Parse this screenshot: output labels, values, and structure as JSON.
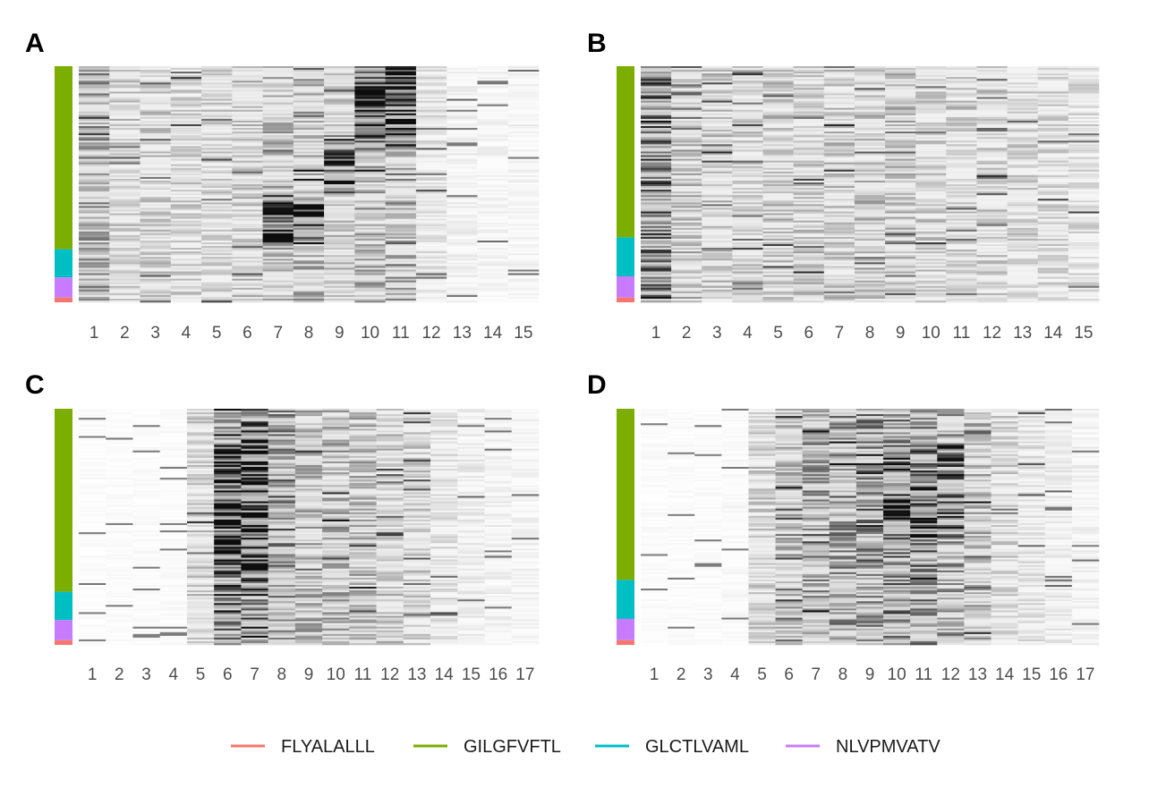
{
  "chart_data": [
    {
      "panel": "A",
      "type": "heatmap",
      "columns": [
        "1",
        "2",
        "3",
        "4",
        "5",
        "6",
        "7",
        "8",
        "9",
        "10",
        "11",
        "12",
        "13",
        "14",
        "15"
      ],
      "row_groups": [
        {
          "name": "GILGFVFTL",
          "fraction": 0.775
        },
        {
          "name": "GLCTLVAML",
          "fraction": 0.12
        },
        {
          "name": "NLVPMVATV",
          "fraction": 0.085
        },
        {
          "name": "FLYALALLL",
          "fraction": 0.02
        }
      ],
      "grid": false
    },
    {
      "panel": "B",
      "type": "heatmap",
      "columns": [
        "1",
        "2",
        "3",
        "4",
        "5",
        "6",
        "7",
        "8",
        "9",
        "10",
        "11",
        "12",
        "13",
        "14",
        "15"
      ],
      "row_groups": [
        {
          "name": "GILGFVFTL",
          "fraction": 0.725
        },
        {
          "name": "GLCTLVAML",
          "fraction": 0.165
        },
        {
          "name": "NLVPMVATV",
          "fraction": 0.09
        },
        {
          "name": "FLYALALLL",
          "fraction": 0.02
        }
      ],
      "grid": false
    },
    {
      "panel": "C",
      "type": "heatmap",
      "columns": [
        "1",
        "2",
        "3",
        "4",
        "5",
        "6",
        "7",
        "8",
        "9",
        "10",
        "11",
        "12",
        "13",
        "14",
        "15",
        "16",
        "17"
      ],
      "row_groups": [
        {
          "name": "GILGFVFTL",
          "fraction": 0.775
        },
        {
          "name": "GLCTLVAML",
          "fraction": 0.12
        },
        {
          "name": "NLVPMVATV",
          "fraction": 0.085
        },
        {
          "name": "FLYALALLL",
          "fraction": 0.02
        }
      ],
      "grid": false
    },
    {
      "panel": "D",
      "type": "heatmap",
      "columns": [
        "1",
        "2",
        "3",
        "4",
        "5",
        "6",
        "7",
        "8",
        "9",
        "10",
        "11",
        "12",
        "13",
        "14",
        "15",
        "16",
        "17"
      ],
      "row_groups": [
        {
          "name": "GILGFVFTL",
          "fraction": 0.725
        },
        {
          "name": "GLCTLVAML",
          "fraction": 0.165
        },
        {
          "name": "NLVPMVATV",
          "fraction": 0.09
        },
        {
          "name": "FLYALALLL",
          "fraction": 0.02
        }
      ],
      "grid": false
    }
  ],
  "legend": {
    "position": "bottom",
    "items": [
      {
        "name": "FLYALALLL",
        "color": "#F8766D"
      },
      {
        "name": "GILGFVFTL",
        "color": "#7CAE00"
      },
      {
        "name": "GLCTLVAML",
        "color": "#00BFC4"
      },
      {
        "name": "NLVPMVATV",
        "color": "#C77CFF"
      }
    ]
  },
  "heatmap_colors": {
    "low": "#ffffff",
    "high": "#000000"
  }
}
